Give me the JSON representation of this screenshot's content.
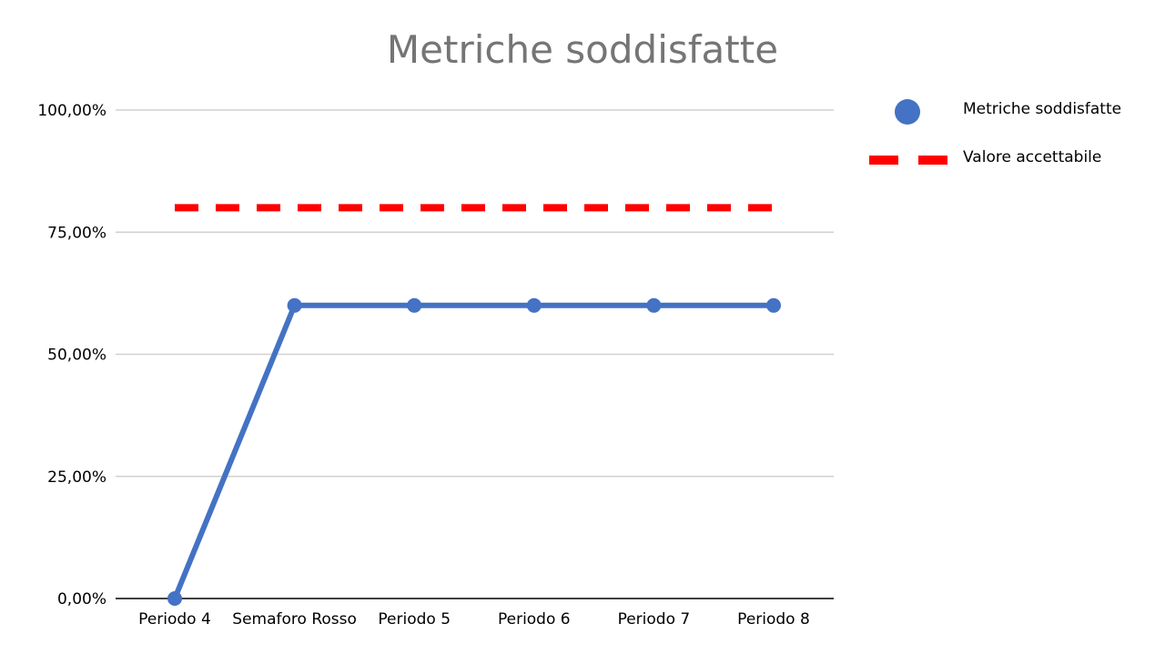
{
  "chart_data": {
    "type": "line",
    "title": "Metriche soddisfatte",
    "categories": [
      "Periodo 4",
      "Semaforo Rosso",
      "Periodo 5",
      "Periodo 6",
      "Periodo 7",
      "Periodo 8"
    ],
    "series": [
      {
        "name": "Metriche soddisfatte",
        "values": [
          0,
          60,
          60,
          60,
          60,
          60
        ],
        "color": "#4472C4",
        "style": "solid-with-markers"
      },
      {
        "name": "Valore accettabile",
        "values": [
          80,
          80,
          80,
          80,
          80,
          80
        ],
        "color": "#FF0000",
        "style": "dashed"
      }
    ],
    "y_ticks": [
      0,
      25,
      50,
      75,
      100
    ],
    "y_tick_labels": [
      "0,00%",
      "25,00%",
      "50,00%",
      "75,00%",
      "100,00%"
    ],
    "ylim": [
      0,
      100
    ],
    "grid": true,
    "legend_position": "right"
  }
}
